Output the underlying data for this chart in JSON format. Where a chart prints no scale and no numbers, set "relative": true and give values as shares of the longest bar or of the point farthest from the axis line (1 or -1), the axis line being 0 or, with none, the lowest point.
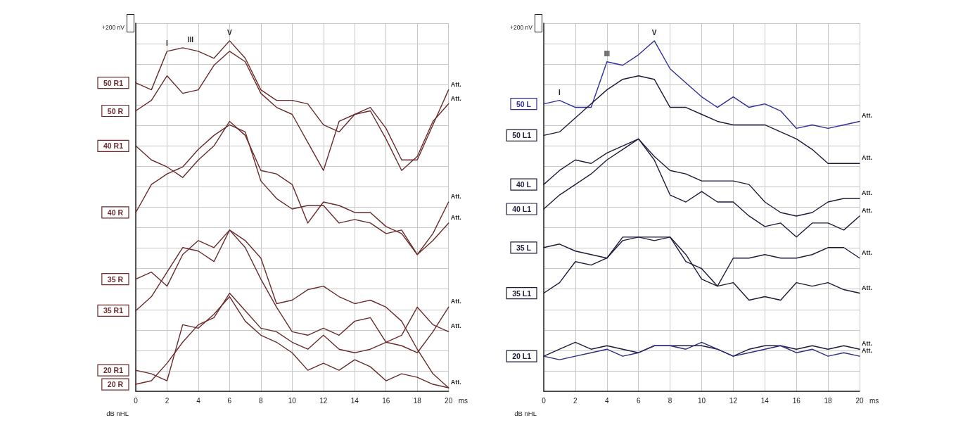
{
  "chart_data": [
    {
      "type": "line",
      "xlabel": "ms",
      "ylabel": "dB nHL",
      "relative": true,
      "grid": true,
      "marker": "none",
      "x": [
        0,
        1,
        2,
        3,
        4,
        5,
        6,
        7,
        8,
        9,
        10,
        11,
        12,
        13,
        14,
        15,
        16,
        17,
        18,
        19,
        20
      ],
      "xlim": [
        0,
        20
      ],
      "xticks": [
        0,
        2,
        4,
        6,
        8,
        10,
        12,
        14,
        16,
        18,
        20
      ],
      "annotations": [
        "+200 nV",
        {
          "text": "I",
          "x": 2,
          "y": 0.97
        },
        {
          "text": "III",
          "x": 3.5,
          "y": 0.98
        },
        {
          "text": "V",
          "x": 6,
          "y": 1.0
        },
        {
          "text": "Att.",
          "x": 20,
          "y": 0.86
        },
        {
          "text": "Att.",
          "x": 20,
          "y": 0.82
        },
        {
          "text": "Att.",
          "x": 20,
          "y": 0.54
        },
        {
          "text": "Att.",
          "x": 20,
          "y": 0.48
        },
        {
          "text": "Att.",
          "x": 20,
          "y": 0.24
        },
        {
          "text": "Att.",
          "x": 20,
          "y": 0.17
        },
        {
          "text": "Att.",
          "x": 20,
          "y": 0.01
        }
      ],
      "series": [
        {
          "name": "50 R1",
          "color": "#6b2b2b",
          "values": [
            0.88,
            0.86,
            0.97,
            0.98,
            0.97,
            0.95,
            1.0,
            0.95,
            0.86,
            0.83,
            0.83,
            0.82,
            0.76,
            0.74,
            0.79,
            0.81,
            0.75,
            0.66,
            0.66,
            0.76,
            0.86
          ]
        },
        {
          "name": "50 R",
          "color": "#6b2b2b",
          "values": [
            0.8,
            0.83,
            0.9,
            0.85,
            0.86,
            0.93,
            0.97,
            0.94,
            0.85,
            0.81,
            0.79,
            0.71,
            0.63,
            0.77,
            0.79,
            0.8,
            0.72,
            0.63,
            0.67,
            0.77,
            0.82
          ]
        },
        {
          "name": "40 R1",
          "color": "#6b2b2b",
          "values": [
            0.7,
            0.66,
            0.64,
            0.61,
            0.66,
            0.7,
            0.77,
            0.73,
            0.63,
            0.62,
            0.59,
            0.48,
            0.54,
            0.53,
            0.51,
            0.51,
            0.47,
            0.45,
            0.39,
            0.45,
            0.54
          ]
        },
        {
          "name": "40 R",
          "color": "#6b2b2b",
          "values": [
            0.51,
            0.59,
            0.62,
            0.64,
            0.69,
            0.73,
            0.76,
            0.74,
            0.6,
            0.55,
            0.52,
            0.53,
            0.53,
            0.48,
            0.49,
            0.48,
            0.45,
            0.46,
            0.39,
            0.43,
            0.48
          ]
        },
        {
          "name": "35 R",
          "color": "#6b2b2b",
          "values": [
            0.32,
            0.34,
            0.3,
            0.39,
            0.43,
            0.41,
            0.46,
            0.43,
            0.38,
            0.25,
            0.26,
            0.29,
            0.3,
            0.27,
            0.25,
            0.26,
            0.24,
            0.2,
            0.12,
            0.05,
            0.01
          ]
        },
        {
          "name": "35 R1",
          "color": "#6b2b2b",
          "values": [
            0.23,
            0.27,
            0.34,
            0.41,
            0.4,
            0.37,
            0.46,
            0.41,
            0.32,
            0.24,
            0.17,
            0.16,
            0.18,
            0.16,
            0.2,
            0.21,
            0.14,
            0.13,
            0.11,
            0.17,
            0.24
          ]
        },
        {
          "name": "20 R1",
          "color": "#6b2b2b",
          "values": [
            0.06,
            0.05,
            0.03,
            0.19,
            0.18,
            0.22,
            0.27,
            0.2,
            0.16,
            0.14,
            0.11,
            0.06,
            0.08,
            0.06,
            0.09,
            0.07,
            0.03,
            0.05,
            0.04,
            0.02,
            0.01
          ]
        },
        {
          "name": "20 R",
          "color": "#6b2b2b",
          "values": [
            0.02,
            0.03,
            0.08,
            0.14,
            0.19,
            0.21,
            0.28,
            0.23,
            0.18,
            0.17,
            0.14,
            0.12,
            0.16,
            0.12,
            0.11,
            0.12,
            0.14,
            0.16,
            0.24,
            0.19,
            0.17
          ]
        }
      ]
    },
    {
      "type": "line",
      "xlabel": "ms",
      "ylabel": "dB nHL",
      "relative": true,
      "grid": true,
      "marker": "none",
      "x": [
        0,
        1,
        2,
        3,
        4,
        5,
        6,
        7,
        8,
        9,
        10,
        11,
        12,
        13,
        14,
        15,
        16,
        17,
        18,
        19,
        20
      ],
      "xlim": [
        0,
        20
      ],
      "xticks": [
        0,
        2,
        4,
        6,
        8,
        10,
        12,
        14,
        16,
        18,
        20
      ],
      "annotations": [
        "+200 nV",
        {
          "text": "I",
          "x": 1,
          "y": 0.83
        },
        {
          "text": "III",
          "x": 4,
          "y": 0.94
        },
        {
          "text": "V",
          "x": 7,
          "y": 1.0
        },
        {
          "text": "Att.",
          "x": 20,
          "y": 0.77
        },
        {
          "text": "Att.",
          "x": 20,
          "y": 0.65
        },
        {
          "text": "Att.",
          "x": 20,
          "y": 0.55
        },
        {
          "text": "Att.",
          "x": 20,
          "y": 0.5
        },
        {
          "text": "Att.",
          "x": 20,
          "y": 0.38
        },
        {
          "text": "Att.",
          "x": 20,
          "y": 0.28
        },
        {
          "text": "Att.",
          "x": 20,
          "y": 0.12
        },
        {
          "text": "Att.",
          "x": 20,
          "y": 0.1
        }
      ],
      "series": [
        {
          "name": "50 L",
          "color": "#2e2e9e",
          "values": [
            0.82,
            0.83,
            0.81,
            0.81,
            0.94,
            0.93,
            0.96,
            1.0,
            0.92,
            0.88,
            0.84,
            0.81,
            0.84,
            0.81,
            0.82,
            0.8,
            0.75,
            0.76,
            0.75,
            0.76,
            0.77
          ]
        },
        {
          "name": "50 L1",
          "color": "#1c1c3a",
          "values": [
            0.73,
            0.74,
            0.78,
            0.82,
            0.86,
            0.89,
            0.9,
            0.89,
            0.81,
            0.81,
            0.79,
            0.77,
            0.76,
            0.76,
            0.76,
            0.74,
            0.72,
            0.69,
            0.65,
            0.65,
            0.65
          ]
        },
        {
          "name": "40 L",
          "color": "#1c1c3a",
          "values": [
            0.59,
            0.63,
            0.66,
            0.65,
            0.68,
            0.7,
            0.72,
            0.67,
            0.63,
            0.62,
            0.6,
            0.6,
            0.6,
            0.59,
            0.54,
            0.51,
            0.5,
            0.51,
            0.54,
            0.55,
            0.55
          ]
        },
        {
          "name": "40 L1",
          "color": "#1c1c3a",
          "values": [
            0.52,
            0.56,
            0.59,
            0.62,
            0.66,
            0.69,
            0.72,
            0.66,
            0.56,
            0.54,
            0.57,
            0.54,
            0.54,
            0.5,
            0.47,
            0.48,
            0.44,
            0.48,
            0.48,
            0.46,
            0.5
          ]
        },
        {
          "name": "35 L",
          "color": "#1c1c3a",
          "values": [
            0.41,
            0.42,
            0.4,
            0.39,
            0.38,
            0.44,
            0.44,
            0.43,
            0.44,
            0.39,
            0.32,
            0.3,
            0.38,
            0.38,
            0.39,
            0.38,
            0.38,
            0.39,
            0.41,
            0.41,
            0.38
          ]
        },
        {
          "name": "35 L1",
          "color": "#1c1c3a",
          "values": [
            0.28,
            0.31,
            0.37,
            0.36,
            0.38,
            0.43,
            0.44,
            0.44,
            0.44,
            0.37,
            0.35,
            0.3,
            0.31,
            0.26,
            0.27,
            0.26,
            0.31,
            0.3,
            0.31,
            0.29,
            0.28
          ]
        },
        {
          "name": "20 L1",
          "color": "#1c1c3a",
          "values": [
            0.1,
            0.12,
            0.14,
            0.12,
            0.13,
            0.12,
            0.11,
            0.13,
            0.13,
            0.13,
            0.13,
            0.12,
            0.1,
            0.12,
            0.13,
            0.13,
            0.12,
            0.13,
            0.12,
            0.13,
            0.12
          ]
        },
        {
          "color": "#2e2e7e",
          "values": [
            0.1,
            0.09,
            0.1,
            0.11,
            0.12,
            0.1,
            0.11,
            0.13,
            0.13,
            0.12,
            0.14,
            0.12,
            0.1,
            0.11,
            0.12,
            0.13,
            0.11,
            0.12,
            0.1,
            0.11,
            0.1
          ]
        }
      ]
    }
  ]
}
